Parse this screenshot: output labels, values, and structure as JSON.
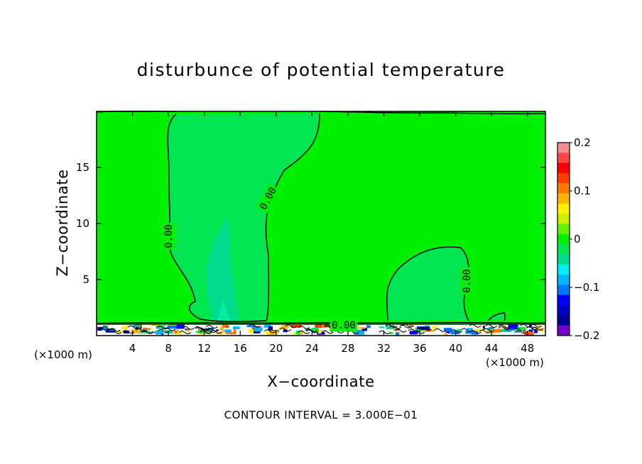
{
  "chart_data": {
    "type": "heatmap",
    "title": "disturbunce of potential temperature",
    "xlabel": "X−coordinate",
    "ylabel": "Z−coordinate",
    "x_unit": "(×1000 m)",
    "footnote": "CONTOUR INTERVAL = 3.000E−01",
    "xlim": [
      0,
      50
    ],
    "ylim": [
      0,
      20
    ],
    "x_ticks": [
      4,
      8,
      12,
      16,
      20,
      24,
      28,
      32,
      36,
      40,
      44,
      48
    ],
    "x_tick_labels": [
      "4",
      "8",
      "12",
      "16",
      "20",
      "24",
      "28",
      "32",
      "36",
      "40",
      "44",
      "48"
    ],
    "y_ticks": [
      5,
      10,
      15
    ],
    "y_tick_labels": [
      "5",
      "10",
      "15"
    ],
    "background_value": 0.0,
    "contour_labels": [
      "0.00",
      "0.00",
      "0.00",
      "0.00"
    ],
    "colorbar": {
      "range": [
        -0.2,
        0.2
      ],
      "tick_values": [
        0.2,
        0.1,
        0,
        -0.1,
        -0.2
      ],
      "tick_labels": [
        "0.2",
        "0.1",
        "0",
        "−0.1",
        "−0.2"
      ],
      "colors": [
        "#f58c8c",
        "#ff4646",
        "#ff0000",
        "#ff3c00",
        "#ff7800",
        "#ffb400",
        "#fff000",
        "#c8f000",
        "#64f000",
        "#00f000",
        "#00e650",
        "#00dc8c",
        "#00f0f0",
        "#00b4ff",
        "#0078ff",
        "#0000ff",
        "#0000c8",
        "#000096",
        "#7800c8"
      ]
    },
    "field_colors": {
      "zero": "#00f000",
      "slightly_negative": "#00e650",
      "negative": "#00dc8c",
      "more_negative": "#00f0a0"
    }
  }
}
